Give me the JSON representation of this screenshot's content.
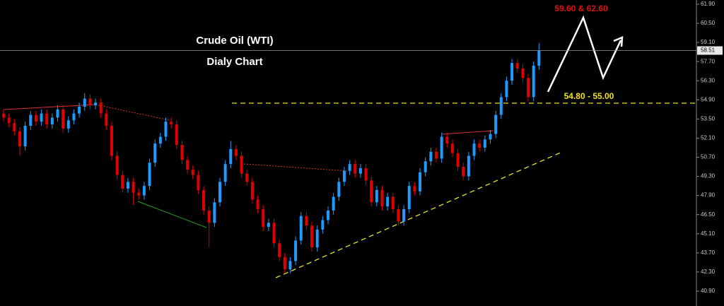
{
  "chart_data": {
    "type": "candlestick",
    "title": "Crude Oil (WTI)",
    "subtitle": "Dialy Chart",
    "annotations": [
      "59.60 & 62.60",
      "54.80 - 55.00"
    ],
    "up_color": "#1e9bff",
    "down_color": "#e00000",
    "last_price": 58.51,
    "ylim": [
      39.81,
      62.21
    ],
    "yticks": [
      {
        "value": 61.9,
        "label": "61.90"
      },
      {
        "value": 60.5,
        "label": "60.50"
      },
      {
        "value": 59.1,
        "label": "59.10"
      },
      {
        "value": 57.7,
        "label": "57.70"
      },
      {
        "value": 56.3,
        "label": "56.30"
      },
      {
        "value": 54.9,
        "label": "54.90"
      },
      {
        "value": 53.5,
        "label": "53.50"
      },
      {
        "value": 52.1,
        "label": "52.10"
      },
      {
        "value": 50.7,
        "label": "50.70"
      },
      {
        "value": 49.3,
        "label": "49.30"
      },
      {
        "value": 47.9,
        "label": "47.90"
      },
      {
        "value": 46.5,
        "label": "46.50"
      },
      {
        "value": 45.1,
        "label": "45.10"
      },
      {
        "value": 43.7,
        "label": "43.70"
      },
      {
        "value": 42.3,
        "label": "42.30"
      },
      {
        "value": 40.9,
        "label": "40.90"
      }
    ],
    "open": [
      53.9,
      53.6,
      53.2,
      52.6,
      51.5,
      53.0,
      53.8,
      53.3,
      53.9,
      53.1,
      53.6,
      54.2,
      52.8,
      53.4,
      53.9,
      54.4,
      55.0,
      54.5,
      54.7,
      53.9,
      53.0,
      50.8,
      49.4,
      48.4,
      48.9,
      48.1,
      47.9,
      48.6,
      50.3,
      51.7,
      52.2,
      53.3,
      53.1,
      51.6,
      50.5,
      49.8,
      49.4,
      48.3,
      46.8,
      45.9,
      47.4,
      48.9,
      50.2,
      51.3,
      50.8,
      49.5,
      48.9,
      47.6,
      46.9,
      45.6,
      45.9,
      44.4,
      43.4,
      42.5,
      43.1,
      44.6,
      46.4,
      45.7,
      44.1,
      45.4,
      46.1,
      46.8,
      47.8,
      48.9,
      49.7,
      50.2,
      49.5,
      49.9,
      49.0,
      47.4,
      48.3,
      47.1,
      47.8,
      46.9,
      46.0,
      46.9,
      48.6,
      48.2,
      49.6,
      50.4,
      51.1,
      50.6,
      52.2,
      51.7,
      51.0,
      50.0,
      49.3,
      50.8,
      51.7,
      51.4,
      52.0,
      52.4,
      53.8,
      55.1,
      56.3,
      57.6,
      57.2,
      56.5,
      55.1,
      57.4
    ],
    "high": [
      54.2,
      53.9,
      53.5,
      52.9,
      53.3,
      54.1,
      54.1,
      54.2,
      54.2,
      53.9,
      54.5,
      54.5,
      53.7,
      54.2,
      54.7,
      55.4,
      55.3,
      55.0,
      55.0,
      54.2,
      53.3,
      51.1,
      49.7,
      49.2,
      49.2,
      48.4,
      48.9,
      50.6,
      52.0,
      52.5,
      53.6,
      53.6,
      53.4,
      51.9,
      50.8,
      50.1,
      49.7,
      48.6,
      47.1,
      47.7,
      49.2,
      50.5,
      51.9,
      51.6,
      51.1,
      49.8,
      49.2,
      47.9,
      47.2,
      46.2,
      46.2,
      44.7,
      43.7,
      43.4,
      44.9,
      46.7,
      46.7,
      46.0,
      45.7,
      46.4,
      47.1,
      48.1,
      49.2,
      50.0,
      50.5,
      50.5,
      50.2,
      50.2,
      49.3,
      48.6,
      48.6,
      48.1,
      48.1,
      47.2,
      47.2,
      48.9,
      48.9,
      49.9,
      50.7,
      51.4,
      51.4,
      52.5,
      52.5,
      52.0,
      51.3,
      50.3,
      51.1,
      52.0,
      52.0,
      52.3,
      52.7,
      54.1,
      55.4,
      56.6,
      57.9,
      57.9,
      57.5,
      56.8,
      57.7,
      59.05
    ],
    "low": [
      53.3,
      52.9,
      52.3,
      50.8,
      51.2,
      52.7,
      53.0,
      53.0,
      52.8,
      52.8,
      53.3,
      52.5,
      52.5,
      53.1,
      53.6,
      54.1,
      54.2,
      54.2,
      53.6,
      52.7,
      50.5,
      49.1,
      48.1,
      48.1,
      47.2,
      47.6,
      47.6,
      48.3,
      50.0,
      51.4,
      51.9,
      52.8,
      51.3,
      50.2,
      49.5,
      49.1,
      48.0,
      46.5,
      44.1,
      45.6,
      47.1,
      48.6,
      49.9,
      50.5,
      49.2,
      48.6,
      47.3,
      46.6,
      45.3,
      45.3,
      44.1,
      43.1,
      42.2,
      42.2,
      42.8,
      44.3,
      45.4,
      43.8,
      43.8,
      45.1,
      45.8,
      46.5,
      47.5,
      48.6,
      49.4,
      49.2,
      49.2,
      48.7,
      47.1,
      47.1,
      46.8,
      46.8,
      46.6,
      45.7,
      45.7,
      46.6,
      47.9,
      47.9,
      49.3,
      50.1,
      50.3,
      50.3,
      51.4,
      50.7,
      49.7,
      49.0,
      49.0,
      50.5,
      51.1,
      51.1,
      51.7,
      52.1,
      53.5,
      54.8,
      56.0,
      56.9,
      56.2,
      54.8,
      54.8,
      57.1
    ],
    "close": [
      53.6,
      53.2,
      52.6,
      51.5,
      53.0,
      53.8,
      53.3,
      53.9,
      53.1,
      53.6,
      54.2,
      52.8,
      53.4,
      53.9,
      54.4,
      55.0,
      54.5,
      54.7,
      53.9,
      53.0,
      50.8,
      49.4,
      48.4,
      48.9,
      48.1,
      47.9,
      48.6,
      50.3,
      51.7,
      52.2,
      53.3,
      53.1,
      51.6,
      50.5,
      49.8,
      49.4,
      48.3,
      46.8,
      45.9,
      47.4,
      48.9,
      50.2,
      51.3,
      50.8,
      49.5,
      48.9,
      47.6,
      46.9,
      45.6,
      45.9,
      44.4,
      43.4,
      42.5,
      43.1,
      44.6,
      46.4,
      45.7,
      44.1,
      45.4,
      46.1,
      46.8,
      47.8,
      48.9,
      49.7,
      50.2,
      49.5,
      49.9,
      49.0,
      47.4,
      48.3,
      47.1,
      47.8,
      46.9,
      46.0,
      46.9,
      48.6,
      48.2,
      49.6,
      50.4,
      51.1,
      50.6,
      52.2,
      51.7,
      51.0,
      50.0,
      49.3,
      50.8,
      51.7,
      51.4,
      52.0,
      52.4,
      53.8,
      55.1,
      56.3,
      57.6,
      57.2,
      56.5,
      55.1,
      57.4,
      58.51
    ]
  }
}
